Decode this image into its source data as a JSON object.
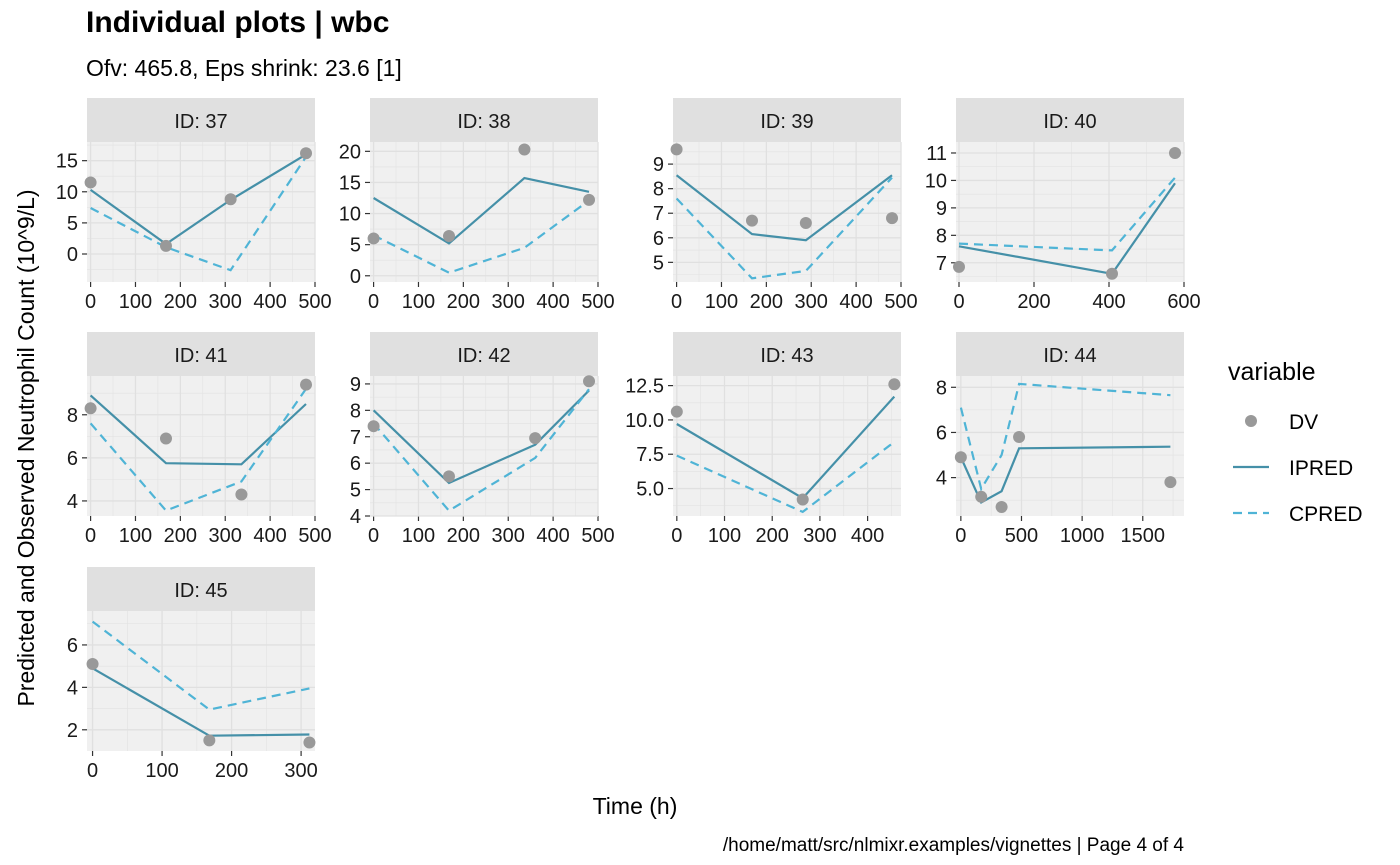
{
  "title": "Individual plots | wbc",
  "subtitle": "Ofv: 465.8, Eps shrink: 23.6 [1]",
  "ylabel": "Predicted and Observed Neutrophil Count (10^9/L)",
  "xlabel": "Time (h)",
  "caption": "/home/matt/src/nlmixr.examples/vignettes | Page 4 of 4",
  "legend": {
    "title": "variable",
    "items": [
      {
        "key": "DV",
        "label": "DV",
        "kind": "point",
        "color": "#999999"
      },
      {
        "key": "IPRED",
        "label": "IPRED",
        "kind": "solid",
        "color": "#4590a8"
      },
      {
        "key": "CPRED",
        "label": "CPRED",
        "kind": "dashed",
        "color": "#4fb4d6"
      }
    ]
  },
  "colors": {
    "panel_bg": "#f0f0f0",
    "strip_bg": "#e0e0e0",
    "grid": "#e2e2e2",
    "dv": "#999999",
    "ipred": "#4590a8",
    "cpred": "#4fb4d6"
  },
  "chart_data": [
    {
      "type": "line",
      "strip": "ID: 37",
      "xlim": [
        -8,
        500
      ],
      "ylim": [
        -4.5,
        18
      ],
      "x_ticks": [
        0,
        100,
        200,
        300,
        400,
        500
      ],
      "y_ticks": [
        0,
        5,
        10,
        15
      ],
      "dv": {
        "x": [
          0,
          168,
          312,
          480
        ],
        "y": [
          11.5,
          1.3,
          8.8,
          16.2
        ]
      },
      "ipred": {
        "x": [
          0,
          168,
          312,
          480
        ],
        "y": [
          10.3,
          1.6,
          8.7,
          16
        ]
      },
      "cpred": {
        "x": [
          0,
          168,
          312,
          480
        ],
        "y": [
          7.4,
          1.1,
          -2.6,
          15.6
        ]
      }
    },
    {
      "type": "line",
      "strip": "ID: 38",
      "xlim": [
        -8,
        500
      ],
      "ylim": [
        -1,
        21.5
      ],
      "x_ticks": [
        0,
        100,
        200,
        300,
        400,
        500
      ],
      "y_ticks": [
        0,
        5,
        10,
        15,
        20
      ],
      "dv": {
        "x": [
          0,
          168,
          336,
          480
        ],
        "y": [
          6,
          6.4,
          20.3,
          12.2
        ]
      },
      "ipred": {
        "x": [
          0,
          168,
          336,
          480
        ],
        "y": [
          12.5,
          5.2,
          15.7,
          13.5
        ]
      },
      "cpred": {
        "x": [
          0,
          168,
          336,
          480
        ],
        "y": [
          6.5,
          0.5,
          4.5,
          12.1
        ]
      }
    },
    {
      "type": "line",
      "strip": "ID: 39",
      "xlim": [
        -8,
        500
      ],
      "ylim": [
        4.2,
        9.9
      ],
      "x_ticks": [
        0,
        100,
        200,
        300,
        400,
        500
      ],
      "y_ticks": [
        5,
        6,
        7,
        8,
        9
      ],
      "dv": {
        "x": [
          0,
          168,
          288,
          480
        ],
        "y": [
          9.6,
          6.7,
          6.6,
          6.8
        ]
      },
      "ipred": {
        "x": [
          0,
          168,
          288,
          480
        ],
        "y": [
          8.55,
          6.15,
          5.9,
          8.55
        ]
      },
      "cpred": {
        "x": [
          0,
          168,
          288,
          480
        ],
        "y": [
          7.6,
          4.35,
          4.65,
          8.45
        ]
      }
    },
    {
      "type": "line",
      "strip": "ID: 40",
      "xlim": [
        -8,
        600
      ],
      "ylim": [
        6.3,
        11.4
      ],
      "x_ticks": [
        0,
        200,
        400,
        600
      ],
      "y_ticks": [
        7,
        8,
        9,
        10,
        11
      ],
      "dv": {
        "x": [
          0,
          408,
          576
        ],
        "y": [
          6.85,
          6.6,
          11
        ]
      },
      "ipred": {
        "x": [
          0,
          408,
          576
        ],
        "y": [
          7.6,
          6.6,
          9.9
        ]
      },
      "cpred": {
        "x": [
          0,
          408,
          576
        ],
        "y": [
          7.7,
          7.45,
          10.1
        ]
      }
    },
    {
      "type": "line",
      "strip": "ID: 41",
      "xlim": [
        -8,
        500
      ],
      "ylim": [
        3.3,
        9.8
      ],
      "x_ticks": [
        0,
        100,
        200,
        300,
        400,
        500
      ],
      "y_ticks": [
        4,
        6,
        8
      ],
      "dv": {
        "x": [
          0,
          168,
          336,
          480
        ],
        "y": [
          8.3,
          6.9,
          4.3,
          9.4
        ]
      },
      "ipred": {
        "x": [
          0,
          168,
          336,
          480
        ],
        "y": [
          8.9,
          5.75,
          5.7,
          8.5
        ]
      },
      "cpred": {
        "x": [
          0,
          168,
          336,
          480
        ],
        "y": [
          7.6,
          3.55,
          4.9,
          9.2
        ]
      }
    },
    {
      "type": "line",
      "strip": "ID: 42",
      "xlim": [
        -8,
        500
      ],
      "ylim": [
        4,
        9.3
      ],
      "x_ticks": [
        0,
        100,
        200,
        300,
        400,
        500
      ],
      "y_ticks": [
        4,
        5,
        6,
        7,
        8,
        9
      ],
      "dv": {
        "x": [
          0,
          168,
          360,
          480
        ],
        "y": [
          7.4,
          5.5,
          6.95,
          9.1
        ]
      },
      "ipred": {
        "x": [
          0,
          168,
          360,
          480
        ],
        "y": [
          8,
          5.25,
          6.7,
          8.75
        ]
      },
      "cpred": {
        "x": [
          0,
          168,
          360,
          480
        ],
        "y": [
          7.5,
          4.2,
          6.2,
          8.8
        ]
      }
    },
    {
      "type": "line",
      "strip": "ID: 43",
      "xlim": [
        -8,
        470
      ],
      "ylim": [
        3,
        13.2
      ],
      "x_ticks": [
        0,
        100,
        200,
        300,
        400
      ],
      "y_ticks": [
        5,
        7.5,
        10,
        12.5
      ],
      "y_tick_labels": [
        "5.0",
        "7.5",
        "10.0",
        "12.5"
      ],
      "dv": {
        "x": [
          0,
          264,
          456
        ],
        "y": [
          10.6,
          4.2,
          12.6
        ]
      },
      "ipred": {
        "x": [
          0,
          264,
          456
        ],
        "y": [
          9.7,
          4.3,
          11.7
        ]
      },
      "cpred": {
        "x": [
          0,
          264,
          456
        ],
        "y": [
          7.4,
          3.3,
          8.4
        ]
      }
    },
    {
      "type": "line",
      "strip": "ID: 44",
      "xlim": [
        -40,
        1840
      ],
      "ylim": [
        2.3,
        8.5
      ],
      "x_ticks": [
        0,
        500,
        1000,
        1500
      ],
      "y_ticks": [
        4,
        6,
        8
      ],
      "dv": {
        "x": [
          0,
          168,
          336,
          480,
          1728
        ],
        "y": [
          4.9,
          3.15,
          2.7,
          5.8,
          3.8
        ]
      },
      "ipred": {
        "x": [
          0,
          168,
          336,
          480,
          1728
        ],
        "y": [
          4.9,
          2.9,
          3.4,
          5.3,
          5.37
        ]
      },
      "cpred": {
        "x": [
          0,
          168,
          336,
          480,
          1728
        ],
        "y": [
          7.1,
          3.5,
          5,
          8.15,
          7.65
        ]
      }
    },
    {
      "type": "line",
      "strip": "ID: 45",
      "xlim": [
        -8,
        320
      ],
      "ylim": [
        1,
        7.6
      ],
      "x_ticks": [
        0,
        100,
        200,
        300
      ],
      "y_ticks": [
        2,
        4,
        6
      ],
      "dv": {
        "x": [
          0,
          168,
          312
        ],
        "y": [
          5.1,
          1.5,
          1.4
        ]
      },
      "ipred": {
        "x": [
          0,
          168,
          312
        ],
        "y": [
          4.9,
          1.72,
          1.78
        ]
      },
      "cpred": {
        "x": [
          0,
          168,
          312
        ],
        "y": [
          7.1,
          2.95,
          3.95
        ]
      }
    }
  ]
}
